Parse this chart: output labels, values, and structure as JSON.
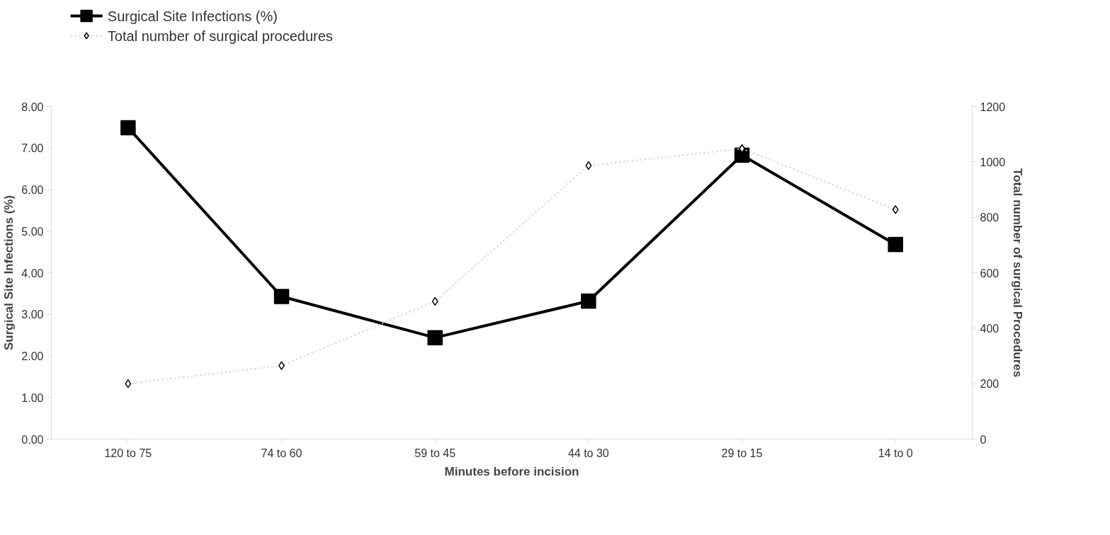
{
  "chart_data": {
    "type": "line",
    "xlabel": "Minutes before incision",
    "ylabel": "Surgical Site Infections (%)",
    "y2label": "Total number of surgical Procedures",
    "categories": [
      "120 to 75",
      "74 to 60",
      "59 to 45",
      "44 to 30",
      "29 to 15",
      "14 to 0"
    ],
    "series": [
      {
        "name": "Surgical Site Infections (%)",
        "color": "#000000",
        "marker": "square",
        "line_style": "solid",
        "values": [
          7.49,
          3.43,
          2.44,
          3.32,
          6.83,
          4.68
        ]
      },
      {
        "name": "Total number of surgical procedures",
        "color": "#d0d0d0",
        "marker": "diamond",
        "line_style": "dotted",
        "axis": "y2",
        "values": [
          200,
          265,
          497,
          987,
          1048,
          828
        ]
      }
    ],
    "ylim": [
      0,
      8
    ],
    "yticks": [
      {
        "value": 0,
        "label": "0.00"
      },
      {
        "value": 1,
        "label": "1.00"
      },
      {
        "value": 2,
        "label": "2.00"
      },
      {
        "value": 3,
        "label": "3.00"
      },
      {
        "value": 4,
        "label": "4.00"
      },
      {
        "value": 5,
        "label": "5.00"
      },
      {
        "value": 6,
        "label": "6.00"
      },
      {
        "value": 7,
        "label": "7.00"
      },
      {
        "value": 8,
        "label": "8.00"
      }
    ],
    "y2lim": [
      0,
      1200
    ],
    "y2ticks": [
      0,
      200,
      400,
      600,
      800,
      1000,
      1200
    ],
    "legend": "top left",
    "grid": false
  }
}
